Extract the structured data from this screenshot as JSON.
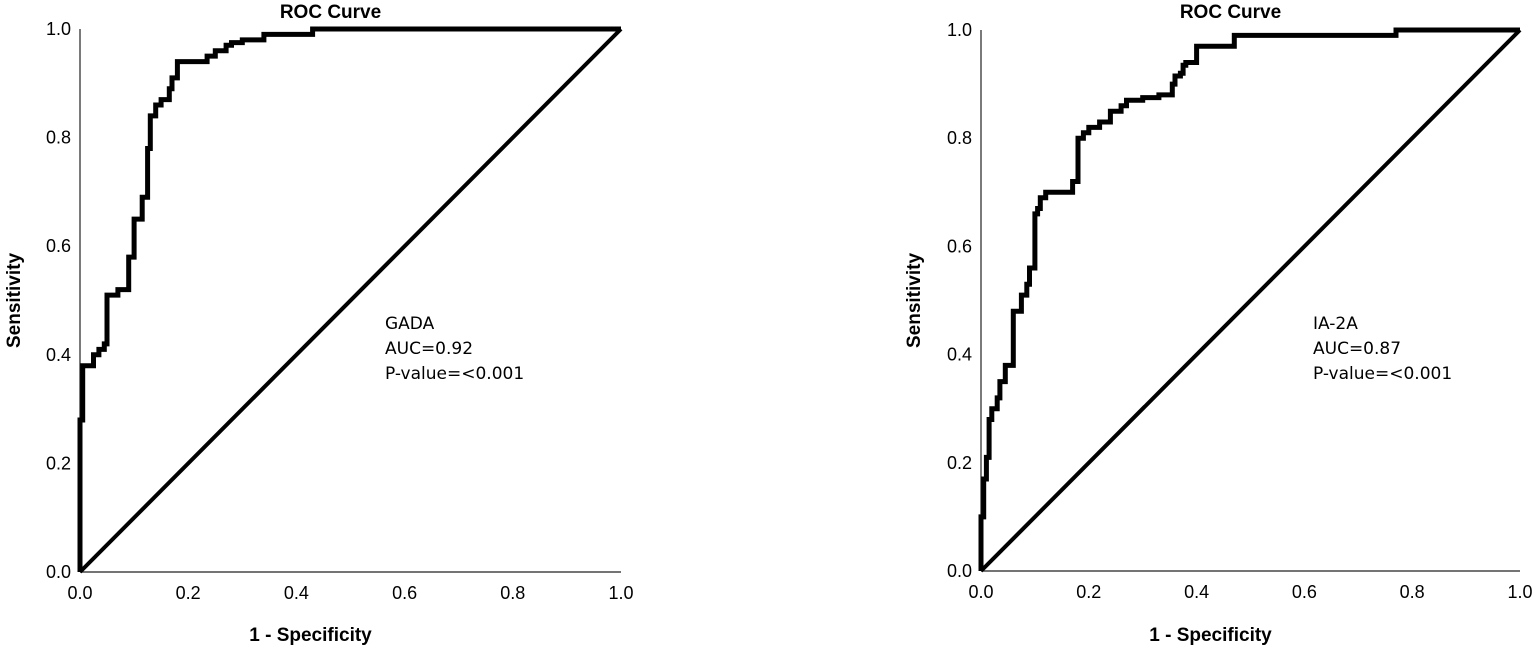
{
  "chart_data": [
    {
      "type": "line",
      "title": "ROC Curve",
      "xlabel": "1 - Specificity",
      "ylabel": "Sensitivity",
      "xlim": [
        0,
        1
      ],
      "ylim": [
        0,
        1
      ],
      "x_ticks": [
        "0.0",
        "0.2",
        "0.4",
        "0.6",
        "0.8",
        "1.0"
      ],
      "y_ticks": [
        "0.0",
        "0.2",
        "0.4",
        "0.6",
        "0.8",
        "1.0"
      ],
      "annotations": [
        "GADA",
        "AUC=0.92",
        "P-value=<0.001"
      ],
      "series": [
        {
          "role": "curve",
          "x": [
            0,
            0,
            0.005,
            0.005,
            0.025,
            0.025,
            0.035,
            0.035,
            0.045,
            0.045,
            0.05,
            0.05,
            0.07,
            0.07,
            0.09,
            0.09,
            0.1,
            0.1,
            0.115,
            0.115,
            0.125,
            0.125,
            0.13,
            0.13,
            0.14,
            0.14,
            0.15,
            0.15,
            0.165,
            0.165,
            0.17,
            0.17,
            0.18,
            0.18,
            0.235,
            0.235,
            0.25,
            0.25,
            0.27,
            0.27,
            0.28,
            0.28,
            0.3,
            0.3,
            0.34,
            0.34,
            0.43,
            0.43,
            1
          ],
          "y": [
            0,
            0.28,
            0.28,
            0.38,
            0.38,
            0.4,
            0.4,
            0.41,
            0.41,
            0.42,
            0.42,
            0.51,
            0.51,
            0.52,
            0.52,
            0.58,
            0.58,
            0.65,
            0.65,
            0.69,
            0.69,
            0.78,
            0.78,
            0.84,
            0.84,
            0.86,
            0.86,
            0.87,
            0.87,
            0.89,
            0.89,
            0.91,
            0.91,
            0.94,
            0.94,
            0.95,
            0.95,
            0.96,
            0.96,
            0.97,
            0.97,
            0.975,
            0.975,
            0.98,
            0.98,
            0.99,
            0.99,
            1.0,
            1.0
          ]
        },
        {
          "role": "reference",
          "x": [
            0,
            1
          ],
          "y": [
            0,
            1
          ]
        }
      ]
    },
    {
      "type": "line",
      "title": "ROC Curve",
      "xlabel": "1 - Specificity",
      "ylabel": "Sensitivity",
      "xlim": [
        0,
        1
      ],
      "ylim": [
        0,
        1
      ],
      "x_ticks": [
        "0.0",
        "0.2",
        "0.4",
        "0.6",
        "0.8",
        "1.0"
      ],
      "y_ticks": [
        "0.0",
        "0.2",
        "0.4",
        "0.6",
        "0.8",
        "1.0"
      ],
      "annotations": [
        "IA-2A",
        "AUC=0.87",
        "P-value=<0.001"
      ],
      "series": [
        {
          "role": "curve",
          "x": [
            0,
            0,
            0.005,
            0.005,
            0.01,
            0.01,
            0.015,
            0.015,
            0.02,
            0.02,
            0.03,
            0.03,
            0.035,
            0.035,
            0.045,
            0.045,
            0.06,
            0.06,
            0.075,
            0.075,
            0.085,
            0.085,
            0.09,
            0.09,
            0.1,
            0.1,
            0.105,
            0.105,
            0.11,
            0.11,
            0.12,
            0.12,
            0.17,
            0.17,
            0.18,
            0.18,
            0.19,
            0.19,
            0.2,
            0.2,
            0.22,
            0.22,
            0.24,
            0.24,
            0.26,
            0.26,
            0.27,
            0.27,
            0.3,
            0.3,
            0.33,
            0.33,
            0.355,
            0.355,
            0.36,
            0.36,
            0.37,
            0.37,
            0.375,
            0.375,
            0.38,
            0.38,
            0.4,
            0.4,
            0.47,
            0.47,
            0.77,
            0.77,
            1
          ],
          "y": [
            0,
            0.1,
            0.1,
            0.17,
            0.17,
            0.21,
            0.21,
            0.28,
            0.28,
            0.3,
            0.3,
            0.32,
            0.32,
            0.35,
            0.35,
            0.38,
            0.38,
            0.48,
            0.48,
            0.51,
            0.51,
            0.53,
            0.53,
            0.56,
            0.56,
            0.66,
            0.66,
            0.67,
            0.67,
            0.69,
            0.69,
            0.7,
            0.7,
            0.72,
            0.72,
            0.8,
            0.8,
            0.81,
            0.81,
            0.82,
            0.82,
            0.83,
            0.83,
            0.85,
            0.85,
            0.86,
            0.86,
            0.87,
            0.87,
            0.875,
            0.875,
            0.88,
            0.88,
            0.9,
            0.9,
            0.915,
            0.915,
            0.92,
            0.92,
            0.935,
            0.935,
            0.94,
            0.94,
            0.97,
            0.97,
            0.99,
            0.99,
            1.0,
            1.0
          ]
        },
        {
          "role": "reference",
          "x": [
            0,
            1
          ],
          "y": [
            0,
            1
          ]
        }
      ]
    }
  ]
}
